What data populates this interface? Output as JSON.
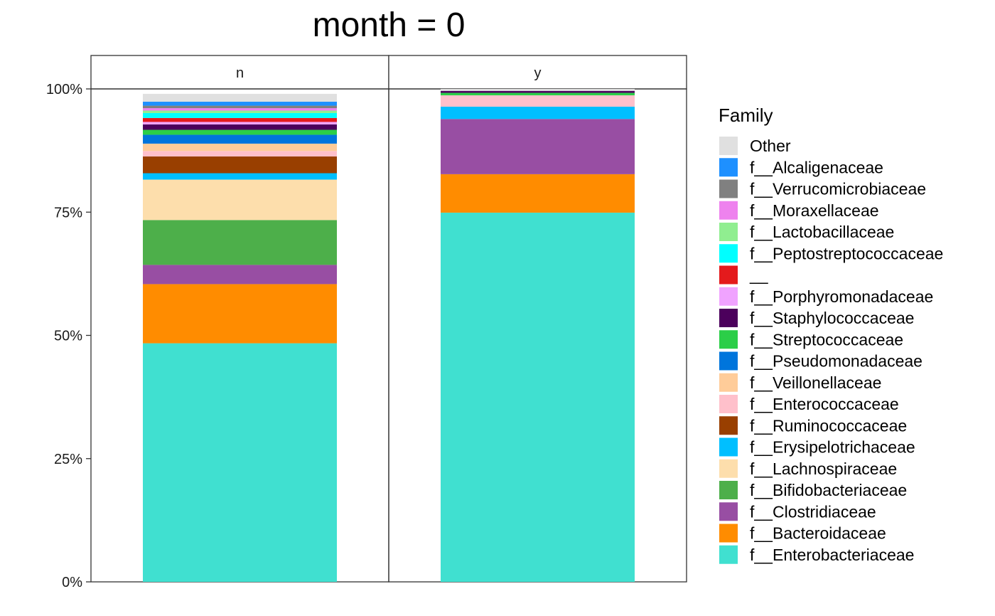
{
  "chart_data": {
    "type": "bar",
    "stacked": true,
    "title": "month = 0",
    "facets": [
      "n",
      "y"
    ],
    "ylim": [
      0,
      1
    ],
    "ytick_labels": [
      "0%",
      "25%",
      "50%",
      "75%",
      "100%"
    ],
    "ytick_values": [
      0,
      0.25,
      0.5,
      0.75,
      1.0
    ],
    "legend_title": "Family",
    "legend_position": "right",
    "grid": false,
    "series": [
      {
        "name": "f__Enterobacteriaceae",
        "color": "#40E0D0",
        "values": [
          0.484,
          0.749
        ]
      },
      {
        "name": "f__Bacteroidaceae",
        "color": "#FF8C00",
        "values": [
          0.12,
          0.078
        ]
      },
      {
        "name": "f__Clostridiaceae",
        "color": "#984EA3",
        "values": [
          0.039,
          0.112
        ]
      },
      {
        "name": "f__Bifidobacteriaceae",
        "color": "#4DAF4A",
        "values": [
          0.091,
          0.0
        ]
      },
      {
        "name": "f__Lachnospiraceae",
        "color": "#FDDEAC",
        "values": [
          0.082,
          0.0
        ]
      },
      {
        "name": "f__Erysipelotrichaceae",
        "color": "#00BFFF",
        "values": [
          0.013,
          0.025
        ]
      },
      {
        "name": "f__Ruminococcaceae",
        "color": "#993F00",
        "values": [
          0.034,
          0.0
        ]
      },
      {
        "name": "f__Enterococcaceae",
        "color": "#FFC0CB",
        "values": [
          0.011,
          0.023
        ]
      },
      {
        "name": "f__Veillonellaceae",
        "color": "#FFCC99",
        "values": [
          0.015,
          0.0
        ]
      },
      {
        "name": "f__Pseudomonadaceae",
        "color": "#0075DC",
        "values": [
          0.018,
          0.0
        ]
      },
      {
        "name": "f__Streptococcaceae",
        "color": "#2BCE48",
        "values": [
          0.01,
          0.005
        ]
      },
      {
        "name": "f__Staphylococcaceae",
        "color": "#4C005C",
        "values": [
          0.011,
          0.004
        ]
      },
      {
        "name": "f__Porphyromonadaceae",
        "color": "#F0A3FF",
        "values": [
          0.005,
          0.0
        ]
      },
      {
        "name": "__",
        "color": "#E41A1C",
        "values": [
          0.008,
          0.0
        ]
      },
      {
        "name": "f__Peptostreptococcaceae",
        "color": "#00FFFF",
        "values": [
          0.01,
          0.0
        ]
      },
      {
        "name": "f__Lactobacillaceae",
        "color": "#90EE90",
        "values": [
          0.005,
          0.0
        ]
      },
      {
        "name": "f__Moraxellaceae",
        "color": "#EE82EE",
        "values": [
          0.005,
          0.0
        ]
      },
      {
        "name": "f__Verrucomicrobiaceae",
        "color": "#808080",
        "values": [
          0.005,
          0.0
        ]
      },
      {
        "name": "f__Alcaligenaceae",
        "color": "#1E90FF",
        "values": [
          0.008,
          0.0
        ]
      },
      {
        "name": "Other",
        "color": "#E0E0E0",
        "values": [
          0.016,
          0.004
        ]
      }
    ]
  }
}
